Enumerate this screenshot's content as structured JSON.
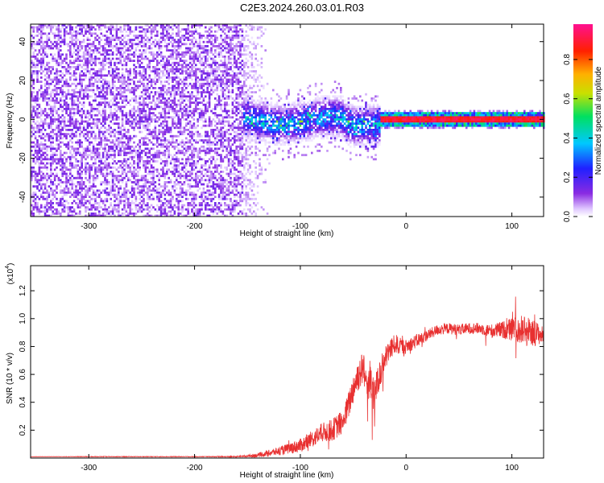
{
  "figure": {
    "title": "C2E3.2024.260.03.01.R03"
  },
  "chart_data": [
    {
      "type": "heatmap",
      "xlabel": "Height of straight line (km)",
      "ylabel": "Frequency (Hz)",
      "xlim": [
        -355,
        130
      ],
      "ylim": [
        -50,
        49
      ],
      "xticks": [
        -300,
        -200,
        -100,
        0,
        100
      ],
      "yticks": [
        -40,
        -20,
        0,
        20,
        40
      ],
      "colorbar": {
        "label": "Normalized spectral amplitude",
        "range": [
          0,
          0.98
        ],
        "ticks": [
          "0.0",
          "0.2",
          "0.4",
          "0.6",
          "0.8"
        ],
        "tick_values": [
          0.0,
          0.2,
          0.4,
          0.6,
          0.8
        ],
        "colormap": "rainbow (white-purple-blue-cyan-green-yellow-orange-red-magenta)"
      },
      "regions": [
        {
          "x_range": [
            -355,
            -155
          ],
          "freq_range": [
            -50,
            49
          ],
          "amplitude": "low (0.0-0.2)",
          "pattern": "broadband noise"
        },
        {
          "x_range": [
            -155,
            -130
          ],
          "freq_range": [
            -50,
            49
          ],
          "amplitude": "very low (0.0-0.1)",
          "pattern": "fading noise edge"
        },
        {
          "x_range": [
            -155,
            -25
          ],
          "freq_range": [
            -12,
            12
          ],
          "amplitude": "0.2-0.5",
          "pattern": "signal band around 0 Hz"
        },
        {
          "x_range": [
            -25,
            130
          ],
          "freq_range": [
            -3,
            3
          ],
          "amplitude": "up to 0.98",
          "pattern": "narrow carrier line at ~0 Hz"
        }
      ]
    },
    {
      "type": "line",
      "xlabel": "Height of straight line (km)",
      "ylabel": "SNR (10 * v/v)",
      "y_multiplier": "(x10^4)",
      "xlim": [
        -355,
        130
      ],
      "ylim": [
        0,
        1.38
      ],
      "xticks": [
        -300,
        -200,
        -100,
        0,
        100
      ],
      "yticks": [
        "0.2",
        "0.4",
        "0.6",
        "0.8",
        "1.0",
        "1.2"
      ],
      "ytick_values": [
        0.2,
        0.4,
        0.6,
        0.8,
        1.0,
        1.2
      ],
      "line_color": "#e83030",
      "series": [
        {
          "x": [
            -355,
            -300,
            -250,
            -200,
            -160,
            -140,
            -120,
            -100,
            -90,
            -80,
            -70,
            -60,
            -55,
            -50,
            -45,
            -40,
            -35,
            -30,
            -25,
            -20,
            -15,
            -10,
            -5,
            0,
            10,
            20,
            30,
            40,
            50,
            60,
            70,
            80,
            90,
            100,
            110,
            120,
            130
          ],
          "values": [
            0.01,
            0.01,
            0.01,
            0.01,
            0.01,
            0.02,
            0.05,
            0.09,
            0.13,
            0.18,
            0.2,
            0.26,
            0.36,
            0.5,
            0.6,
            0.65,
            0.55,
            0.45,
            0.6,
            0.72,
            0.78,
            0.82,
            0.8,
            0.8,
            0.84,
            0.88,
            0.92,
            0.93,
            0.92,
            0.93,
            0.93,
            0.91,
            0.92,
            0.92,
            0.92,
            0.9,
            0.88
          ],
          "noise": [
            0.0,
            0.002,
            0.002,
            0.002,
            0.004,
            0.015,
            0.03,
            0.05,
            0.06,
            0.07,
            0.08,
            0.09,
            0.1,
            0.11,
            0.12,
            0.13,
            0.15,
            0.12,
            0.1,
            0.09,
            0.08,
            0.07,
            0.06,
            0.05,
            0.05,
            0.04,
            0.04,
            0.04,
            0.04,
            0.04,
            0.04,
            0.05,
            0.06,
            0.08,
            0.12,
            0.1,
            0.06
          ]
        }
      ]
    }
  ]
}
